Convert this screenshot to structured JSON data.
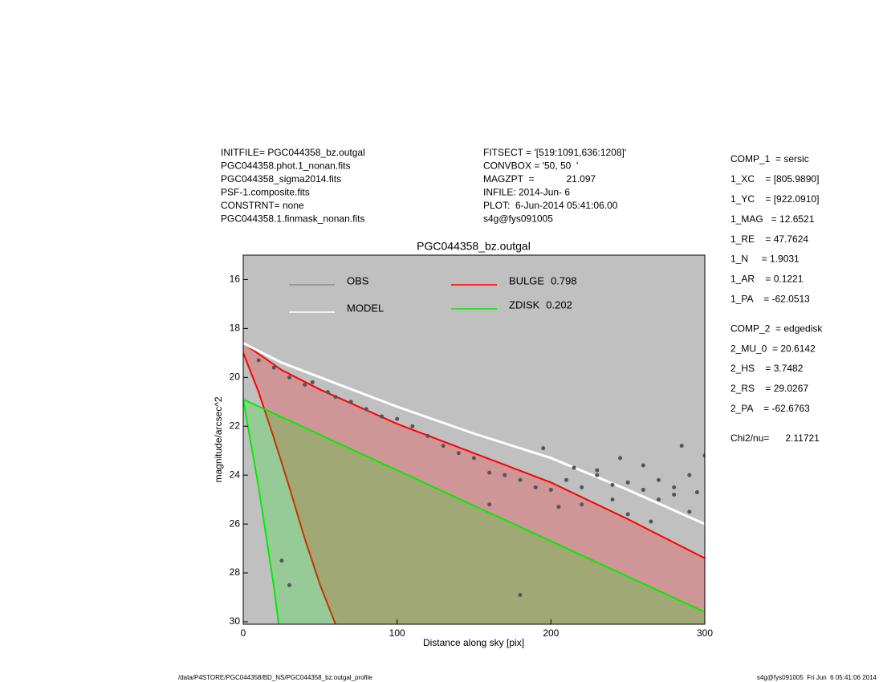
{
  "chart_data": {
    "type": "line",
    "title": "PGC044358_bz.outgal",
    "x_label": "Distance along sky [pix]",
    "y_label": "magnitude/arcsec^2",
    "xlim": [
      0,
      300
    ],
    "xticks": [
      0,
      100,
      200,
      300
    ],
    "ylim": [
      30.1,
      15
    ],
    "yticks": [
      16,
      18,
      20,
      22,
      24,
      26,
      28,
      30
    ],
    "background": "#c0c0c0",
    "series": [
      {
        "name": "OBS",
        "color": "#555555",
        "legend_color": "#8c8c8c",
        "kind": "points",
        "x": [
          10,
          20,
          30,
          40,
          45,
          55,
          60,
          70,
          80,
          90,
          100,
          110,
          120,
          130,
          140,
          150,
          160,
          170,
          180,
          190,
          200,
          210,
          220,
          230,
          240,
          250,
          260,
          270,
          280,
          290,
          300,
          220,
          250,
          270,
          290,
          230,
          260,
          195,
          285,
          180,
          30,
          25,
          240,
          280,
          160,
          205,
          215,
          265,
          295,
          245
        ],
        "values": [
          19.3,
          19.6,
          20.0,
          20.3,
          20.2,
          20.6,
          20.8,
          21.0,
          21.3,
          21.6,
          21.7,
          22.0,
          22.4,
          22.8,
          23.1,
          23.3,
          23.9,
          24.0,
          24.2,
          24.5,
          24.6,
          24.2,
          24.5,
          24.0,
          24.4,
          24.3,
          24.6,
          24.2,
          24.5,
          24.0,
          23.2,
          25.2,
          25.6,
          25.0,
          25.5,
          23.8,
          23.6,
          22.9,
          22.8,
          28.9,
          28.5,
          27.5,
          25.0,
          24.8,
          25.2,
          25.3,
          23.7,
          25.9,
          24.7,
          23.3
        ]
      },
      {
        "name": "MODEL",
        "color": "#ffffff",
        "kind": "line",
        "x": [
          0,
          25,
          50,
          75,
          100,
          150,
          200,
          250,
          300
        ],
        "values": [
          18.6,
          19.4,
          20.0,
          20.6,
          21.2,
          22.3,
          23.3,
          24.6,
          26.0
        ]
      },
      {
        "name": "BULGE",
        "fraction": 0.798,
        "color": "#ff0000",
        "kind": "wedge",
        "x": [
          0,
          25,
          50,
          100,
          150,
          200,
          250,
          300
        ],
        "values": [
          18.6,
          19.7,
          20.5,
          21.9,
          23.1,
          24.3,
          25.8,
          27.4
        ],
        "minor": {
          "x": [
            0,
            10,
            20,
            30,
            40,
            50,
            60
          ],
          "values": [
            19.0,
            20.6,
            22.5,
            24.5,
            26.6,
            28.5,
            30.1
          ]
        }
      },
      {
        "name": "ZDISK",
        "fraction": 0.202,
        "color": "#00ee00",
        "kind": "wedge",
        "x": [
          0,
          100,
          200,
          300
        ],
        "values": [
          20.9,
          23.8,
          26.7,
          29.6
        ],
        "minor": {
          "x": [
            0,
            10,
            20,
            23
          ],
          "values": [
            20.9,
            24.5,
            28.6,
            30.1
          ]
        }
      }
    ]
  },
  "header_left": [
    "INITFILE= PGC044358_bz.outgal",
    "PGC044358.phot.1_nonan.fits",
    "PGC044358_sigma2014.fits",
    "PSF-1.composite.fits",
    "CONSTRNT= none",
    "PGC044358.1.finmask_nonan.fits"
  ],
  "header_mid": [
    "FITSECT = '[519:1091,636:1208]'",
    "CONVBOX = '50, 50  '",
    "MAGZPT  =            21.097",
    "INFILE: 2014-Jun- 6",
    "PLOT:  6-Jun-2014 05:41:06.00",
    "s4g@fys091005"
  ],
  "params": [
    [
      "COMP_1  = sersic",
      "1_XC    = [805.9890]",
      "1_YC    = [922.0910]",
      "1_MAG   = 12.6521",
      "1_RE    = 47.7624",
      "1_N     = 1.9031",
      "1_AR    = 0.1221",
      "1_PA    = -62.0513"
    ],
    [
      "COMP_2  = edgedisk",
      "2_MU_0  = 20.6142",
      "2_HS    = 3.7482",
      "2_RS    = 29.0267",
      "2_PA    = -62.6763"
    ],
    [
      "Chi2/nu=      2.11721"
    ]
  ],
  "footer_left": "/data/P4STORE/PGC044358/BD_NS/PGC044358_bz.outgal_profile",
  "footer_right": "s4g@fys091005  Fri Jun  6 05:41:06 2014"
}
